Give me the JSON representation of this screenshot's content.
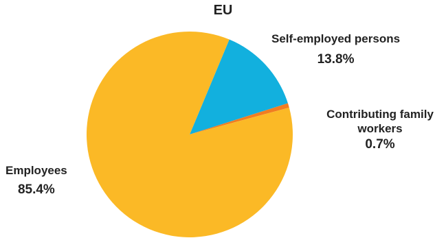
{
  "chart_data": {
    "type": "pie",
    "title": "EU",
    "slices": [
      {
        "name": "Self-employed persons",
        "value": 13.8,
        "label": "13.8%",
        "color": "#12B0DE"
      },
      {
        "name": "Contributing family workers",
        "value": 0.7,
        "label": "0.7%",
        "color": "#F07D21"
      },
      {
        "name": "Employees",
        "value": 85.4,
        "label": "85.4%",
        "color": "#FBB926"
      }
    ],
    "legend": "none"
  }
}
